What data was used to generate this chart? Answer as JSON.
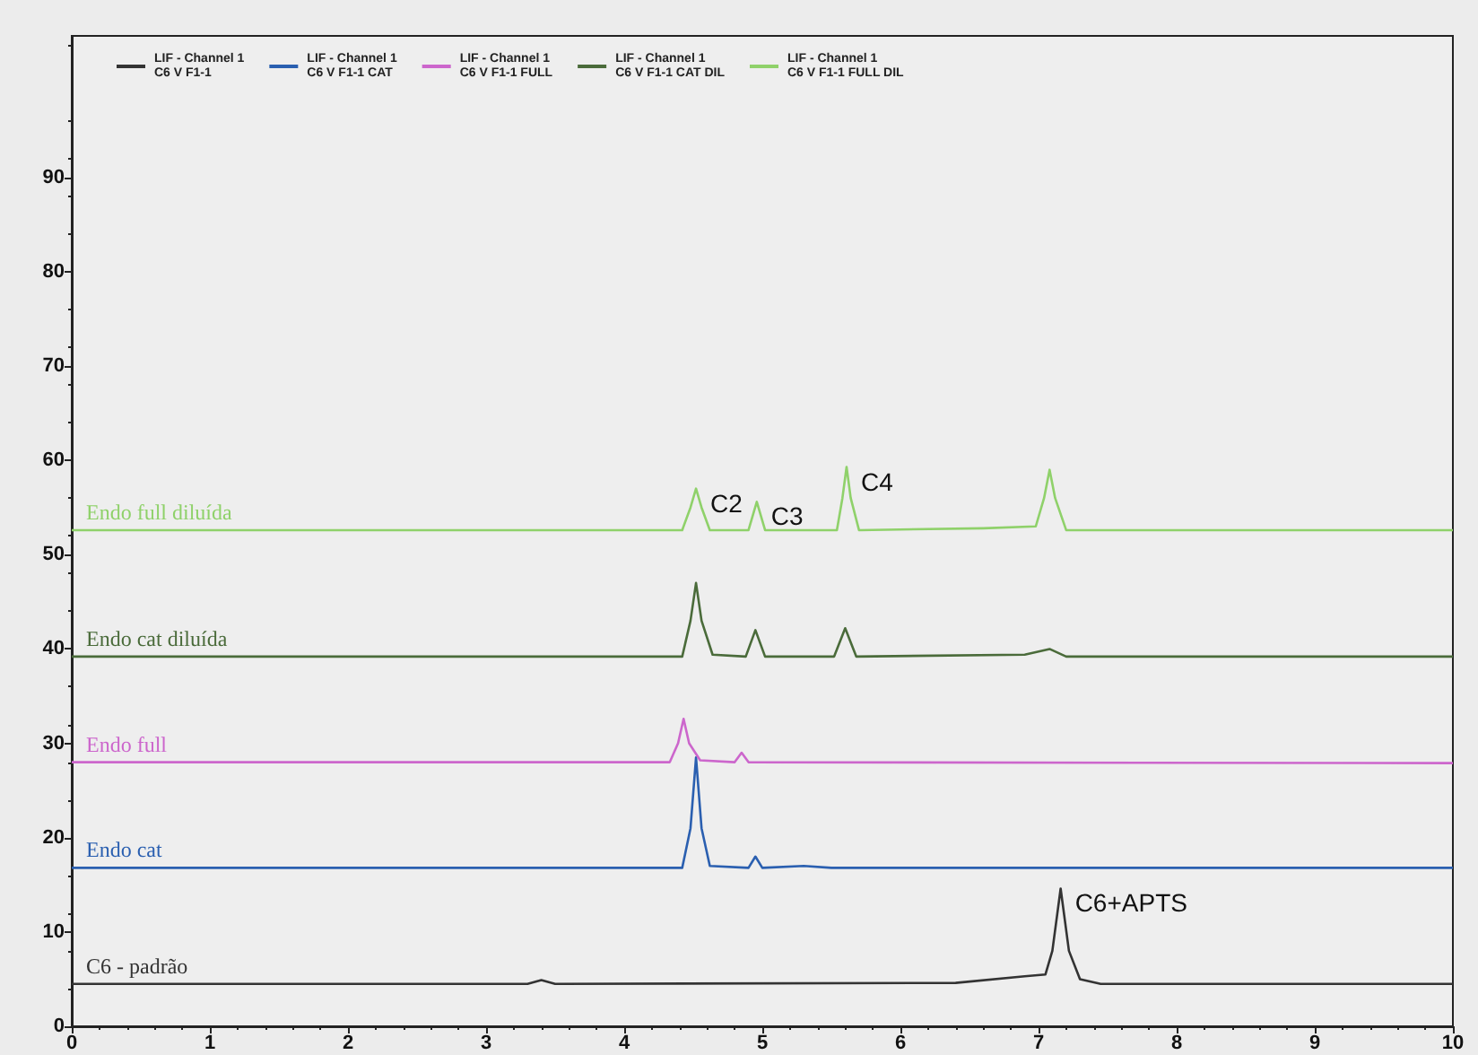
{
  "chart_data": {
    "type": "line",
    "xlim": [
      0,
      10
    ],
    "xticks": [
      0,
      1,
      2,
      3,
      4,
      5,
      6,
      7,
      8,
      9,
      10
    ],
    "ylim": [
      0,
      105
    ],
    "yticks": [
      0,
      10,
      20,
      30,
      40,
      50,
      60,
      70,
      80,
      90
    ],
    "grid": false,
    "legend": "top left",
    "marker": "none",
    "line_style": "solid",
    "series": [
      {
        "name": "LIF - Channel 1\nC6 V F1-1",
        "color": "#333333",
        "x": [
          0,
          3.3,
          3.4,
          3.5,
          6.4,
          6.9,
          7.05,
          7.1,
          7.16,
          7.22,
          7.3,
          7.45,
          10
        ],
        "values": [
          4.5,
          4.5,
          4.9,
          4.5,
          4.6,
          5.3,
          5.5,
          8,
          14.6,
          8,
          5,
          4.5,
          4.5
        ]
      },
      {
        "name": "LIF - Channel 1\nC6 V F1-1 CAT",
        "color": "#2a5fb0",
        "x": [
          0,
          4.42,
          4.48,
          4.52,
          4.56,
          4.62,
          4.9,
          4.95,
          5.0,
          5.3,
          5.5,
          10
        ],
        "values": [
          16.8,
          16.8,
          21,
          28.5,
          21,
          17,
          16.8,
          18,
          16.8,
          17,
          16.8,
          16.8
        ]
      },
      {
        "name": "LIF - Channel 1\nC6 V F1-1 FULL",
        "color": "#cc66cc",
        "x": [
          0,
          4.33,
          4.39,
          4.43,
          4.47,
          4.55,
          4.8,
          4.85,
          4.9,
          10
        ],
        "values": [
          28,
          28,
          30,
          32.6,
          30,
          28.2,
          28,
          29,
          28,
          27.9
        ]
      },
      {
        "name": "LIF - Channel 1\nC6 V F1-1 CAT DIL",
        "color": "#4a6b3a",
        "x": [
          0,
          4.42,
          4.48,
          4.52,
          4.56,
          4.64,
          4.88,
          4.95,
          5.02,
          5.52,
          5.6,
          5.68,
          6.9,
          7.08,
          7.2,
          10
        ],
        "values": [
          39.2,
          39.2,
          43,
          47,
          43,
          39.4,
          39.2,
          42,
          39.2,
          39.2,
          42.2,
          39.2,
          39.4,
          40,
          39.2,
          39.2
        ]
      },
      {
        "name": "LIF - Channel 1\nC6 V F1-1 FULL DIL",
        "color": "#8fd16a",
        "x": [
          0,
          4.42,
          4.48,
          4.52,
          4.56,
          4.62,
          4.9,
          4.96,
          5.02,
          5.54,
          5.58,
          5.61,
          5.64,
          5.7,
          6.6,
          6.98,
          7.04,
          7.08,
          7.12,
          7.2,
          10
        ],
        "values": [
          52.6,
          52.6,
          55,
          57,
          55,
          52.6,
          52.6,
          55.6,
          52.6,
          52.6,
          56,
          59.3,
          56,
          52.6,
          52.8,
          53,
          56,
          59,
          56,
          52.6,
          52.6
        ]
      }
    ],
    "annotations": [
      "C6 - padrão",
      "Endo cat",
      "Endo full",
      "Endo cat diluída",
      "Endo full diluída",
      {
        "text": "C2",
        "x": 4.52,
        "y": 57
      },
      {
        "text": "C3",
        "x": 4.96,
        "y": 55.6
      },
      {
        "text": "C4",
        "x": 5.61,
        "y": 59.3
      },
      {
        "text": "C6+APTS",
        "x": 7.16,
        "y": 14.6
      }
    ]
  }
}
